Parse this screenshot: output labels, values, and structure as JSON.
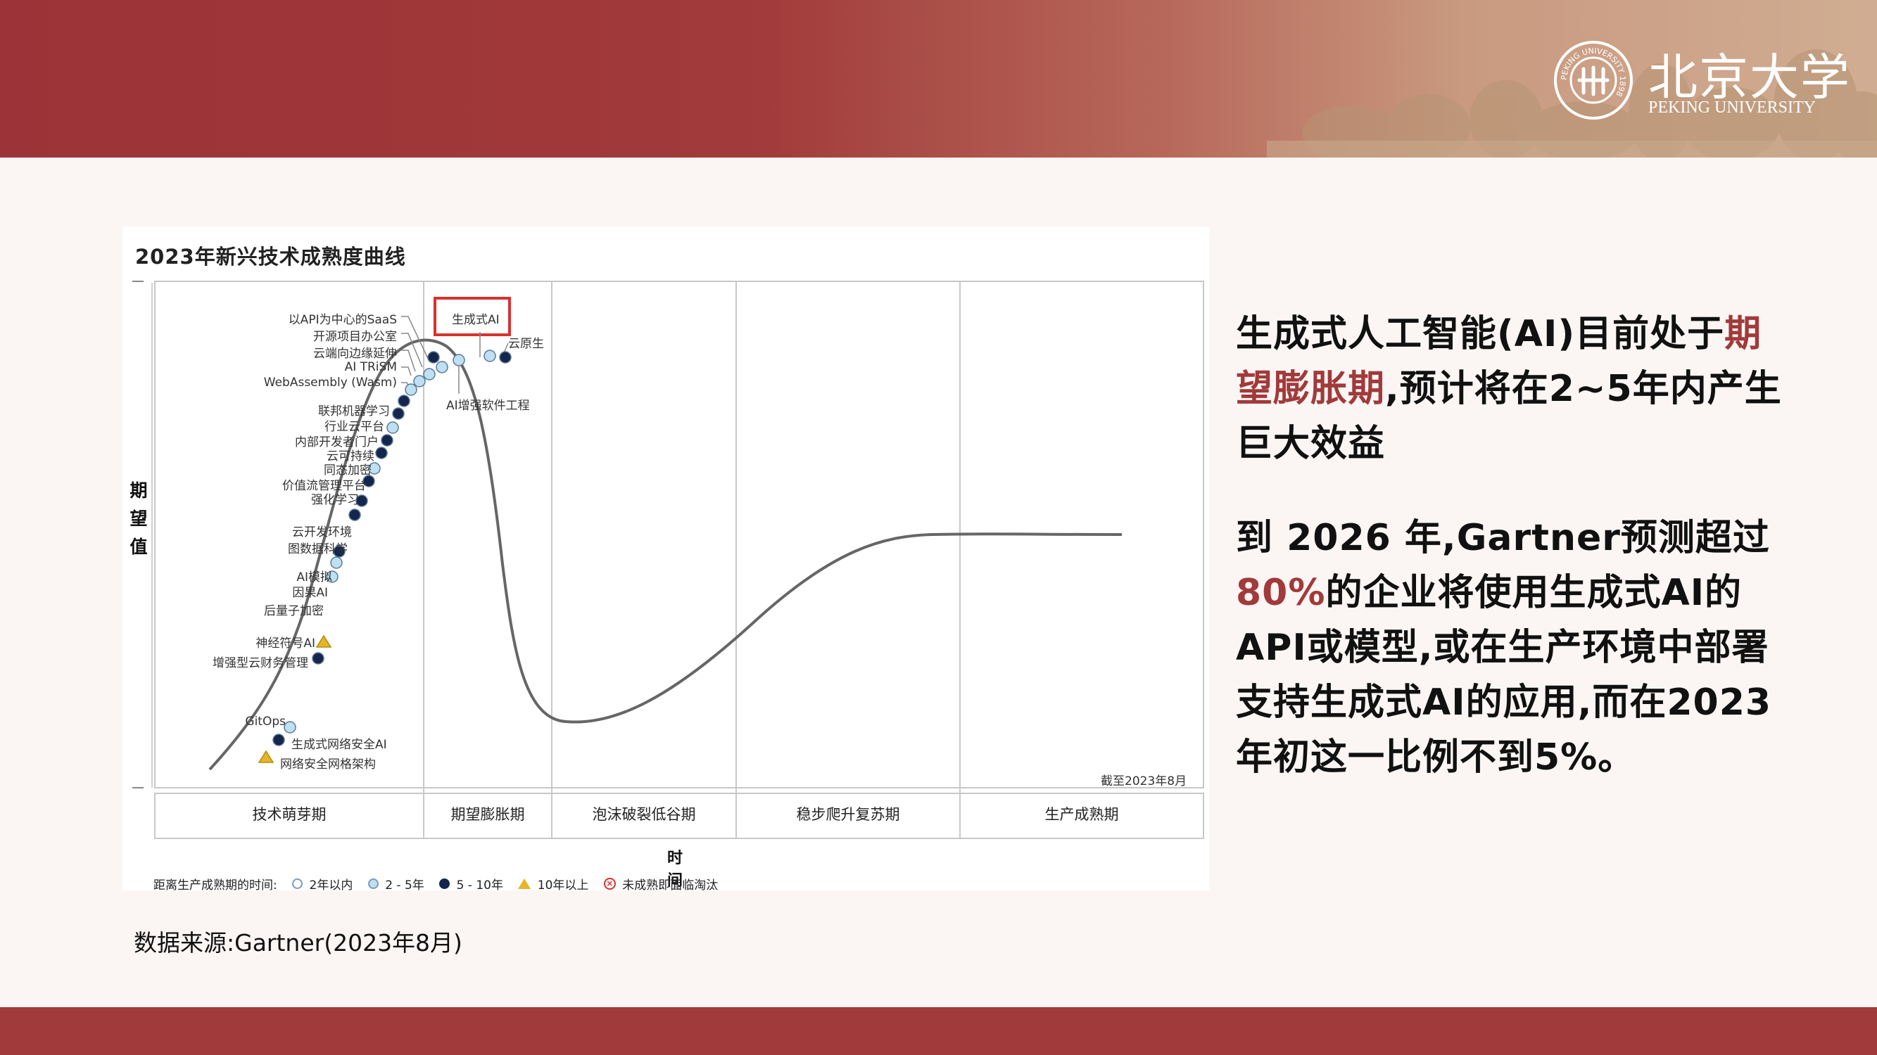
{
  "header": {
    "logo_cn": "北京大学",
    "logo_en": "PEKING UNIVERSITY",
    "seal_text": "PEKING UNIVERSITY 1898",
    "brand_color": "#a13a3a"
  },
  "chart_data": {
    "type": "diagram",
    "title": "2023年新兴技术成熟度曲线",
    "ylabel_chars": [
      "期",
      "望",
      "值"
    ],
    "xlabel": "时 间",
    "date_note": "截至2023年8月",
    "highlight_box_color": "#d7322f",
    "phases": [
      "技术萌芽期",
      "期望膨胀期",
      "泡沫破裂低谷期",
      "稳步爬升复苏期",
      "生产成熟期"
    ],
    "technologies": [
      {
        "name": "以API为中心的SaaS",
        "phase": "期望膨胀期",
        "time_to_plateau": "5 - 10年"
      },
      {
        "name": "开源项目办公室",
        "phase": "期望膨胀期",
        "time_to_plateau": "2 - 5年"
      },
      {
        "name": "云端向边缘延伸",
        "phase": "期望膨胀期",
        "time_to_plateau": "2 - 5年"
      },
      {
        "name": "AI TRiSM",
        "phase": "期望膨胀期",
        "time_to_plateau": "2 - 5年"
      },
      {
        "name": "WebAssembly (Wasm)",
        "phase": "期望膨胀期",
        "time_to_plateau": "2 - 5年"
      },
      {
        "name": "生成式AI",
        "phase": "期望膨胀期",
        "time_to_plateau": "2 - 5年",
        "highlighted": true
      },
      {
        "name": "云原生",
        "phase": "期望膨胀期",
        "time_to_plateau": "5 - 10年"
      },
      {
        "name": "AI增强软件工程",
        "phase": "期望膨胀期",
        "time_to_plateau": "2 - 5年"
      },
      {
        "name": "联邦机器学习",
        "phase": "技术萌芽期",
        "time_to_plateau": "5 - 10年"
      },
      {
        "name": "行业云平台",
        "phase": "技术萌芽期",
        "time_to_plateau": "5 - 10年"
      },
      {
        "name": "内部开发者门户",
        "phase": "技术萌芽期",
        "time_to_plateau": "2 - 5年"
      },
      {
        "name": "云可持续",
        "phase": "技术萌芽期",
        "time_to_plateau": "5 - 10年"
      },
      {
        "name": "同态加密",
        "phase": "技术萌芽期",
        "time_to_plateau": "5 - 10年"
      },
      {
        "name": "价值流管理平台",
        "phase": "技术萌芽期",
        "time_to_plateau": "2 - 5年"
      },
      {
        "name": "强化学习",
        "phase": "技术萌芽期",
        "time_to_plateau": "5 - 10年"
      },
      {
        "name": "云开发环境",
        "phase": "技术萌芽期",
        "time_to_plateau": "5 - 10年"
      },
      {
        "name": "图数据科学",
        "phase": "技术萌芽期",
        "time_to_plateau": "5 - 10年"
      },
      {
        "name": "AI模拟",
        "phase": "技术萌芽期",
        "time_to_plateau": "5 - 10年"
      },
      {
        "name": "因果AI",
        "phase": "技术萌芽期",
        "time_to_plateau": "2 - 5年"
      },
      {
        "name": "后量子加密",
        "phase": "技术萌芽期",
        "time_to_plateau": "2 - 5年"
      },
      {
        "name": "神经符号AI",
        "phase": "技术萌芽期",
        "time_to_plateau": "10年以上"
      },
      {
        "name": "增强型云财务管理",
        "phase": "技术萌芽期",
        "time_to_plateau": "5 - 10年"
      },
      {
        "name": "GitOps",
        "phase": "技术萌芽期",
        "time_to_plateau": "2 - 5年"
      },
      {
        "name": "生成式网络安全AI",
        "phase": "技术萌芽期",
        "time_to_plateau": "5 - 10年"
      },
      {
        "name": "网络安全网格架构",
        "phase": "技术萌芽期",
        "time_to_plateau": "10年以上"
      }
    ],
    "legend": {
      "title": "距离生产成熟期的时间:",
      "items": [
        {
          "label": "2年以内",
          "marker": "hollow-circle",
          "color": "#ffffff"
        },
        {
          "label": "2 - 5年",
          "marker": "light-blue-circle",
          "color": "#bde0f2"
        },
        {
          "label": "5 - 10年",
          "marker": "navy-circle",
          "color": "#15264e"
        },
        {
          "label": "10年以上",
          "marker": "triangle",
          "color": "#e6b526"
        },
        {
          "label": "未成熟即面临淘汰",
          "marker": "x-circle",
          "color": "#d7322f"
        }
      ]
    }
  },
  "source": "数据来源:Gartner(2023年8月)",
  "side_text": {
    "p1_pre": "生成式人工智能(AI)目前处于",
    "p1_highlight": "期望膨胀期",
    "p1_post": ",预计将在2~5年内产生巨大效益",
    "p2_pre": "到 2026 年,Gartner预测超过",
    "p2_highlight": "80%",
    "p2_post": "的企业将使用生成式AI的API或模型,或在生产环境中部署支持生成式AI的应用,而在2023年初这一比例不到5%。"
  }
}
